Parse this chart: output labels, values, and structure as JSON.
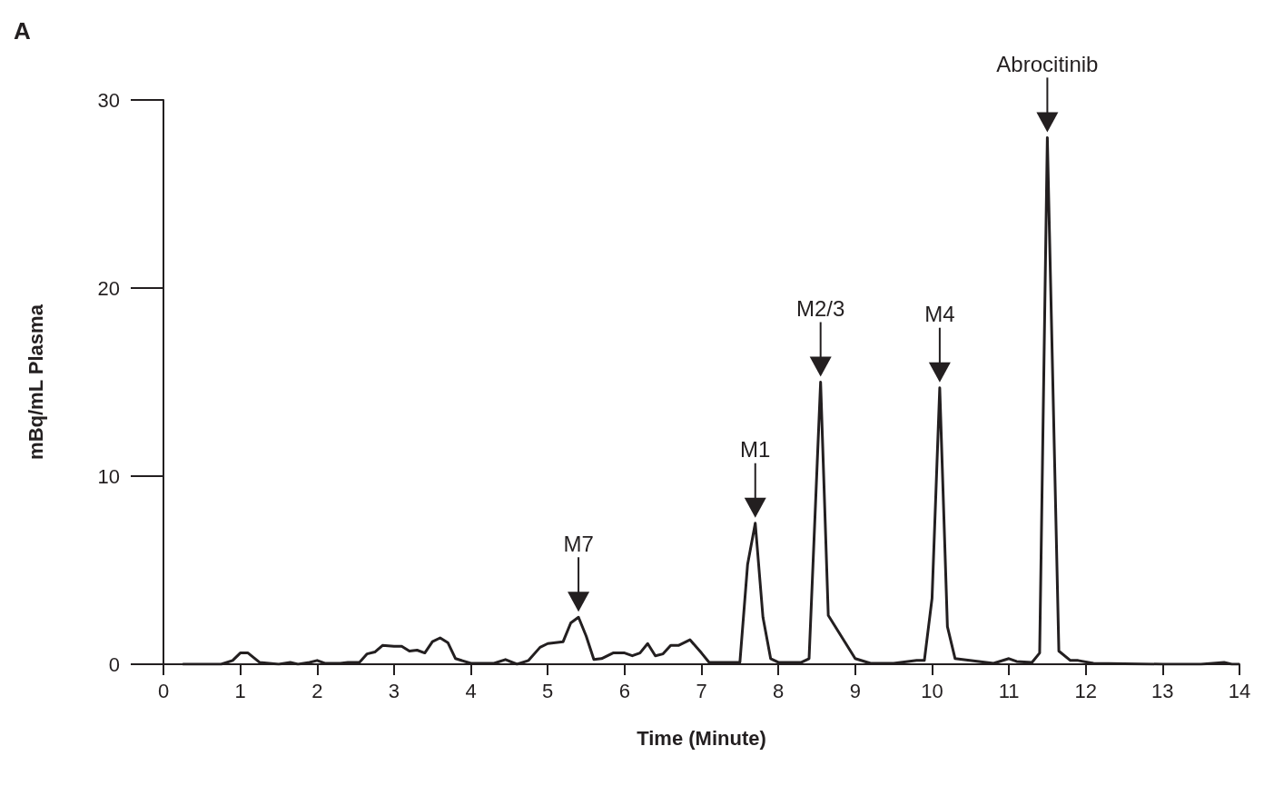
{
  "chart_data": {
    "type": "line",
    "title": "A",
    "xlabel": "Time (Minute)",
    "ylabel": "mBq/mL Plasma",
    "xlim": [
      0,
      14
    ],
    "xticks": [
      0,
      1,
      2,
      3,
      4,
      5,
      6,
      7,
      8,
      9,
      10,
      11,
      12,
      13,
      14
    ],
    "ylim": [
      0,
      30
    ],
    "yticks": [
      0,
      10,
      20,
      30
    ],
    "grid": false,
    "marker": "none",
    "line_style": "solid",
    "series": [
      {
        "color": "#231f20",
        "x": [
          0.25,
          0.75,
          0.9,
          1.0,
          1.1,
          1.25,
          1.5,
          1.65,
          1.75,
          1.9,
          2.0,
          2.1,
          2.3,
          2.4,
          2.55,
          2.65,
          2.75,
          2.85,
          3.0,
          3.1,
          3.2,
          3.3,
          3.4,
          3.5,
          3.6,
          3.7,
          3.8,
          4.0,
          4.3,
          4.45,
          4.6,
          4.75,
          4.9,
          5.0,
          5.2,
          5.3,
          5.4,
          5.5,
          5.6,
          5.7,
          5.85,
          6.0,
          6.1,
          6.2,
          6.3,
          6.4,
          6.5,
          6.6,
          6.7,
          6.85,
          7.0,
          7.1,
          7.3,
          7.5,
          7.6,
          7.7,
          7.8,
          7.9,
          8.0,
          8.3,
          8.4,
          8.55,
          8.65,
          9.0,
          9.2,
          9.5,
          9.8,
          9.9,
          10.0,
          10.1,
          10.2,
          10.3,
          10.8,
          11.0,
          11.1,
          11.3,
          11.4,
          11.5,
          11.65,
          11.8,
          11.9,
          12.1,
          13.0,
          13.5,
          13.8,
          13.9,
          14.0
        ],
        "values": [
          0,
          0,
          0.2,
          0.6,
          0.6,
          0.1,
          0,
          0.1,
          0,
          0.1,
          0.2,
          0.05,
          0.05,
          0.1,
          0.1,
          0.55,
          0.65,
          1.0,
          0.95,
          0.95,
          0.7,
          0.75,
          0.6,
          1.2,
          1.4,
          1.15,
          0.3,
          0.05,
          0.05,
          0.25,
          0,
          0.2,
          0.9,
          1.1,
          1.2,
          2.2,
          2.5,
          1.5,
          0.25,
          0.3,
          0.6,
          0.6,
          0.45,
          0.6,
          1.1,
          0.45,
          0.55,
          1.0,
          1.0,
          1.3,
          0.6,
          0.1,
          0.1,
          0.1,
          5.3,
          7.5,
          2.5,
          0.3,
          0.1,
          0.1,
          0.3,
          15.0,
          2.6,
          0.3,
          0.05,
          0.05,
          0.2,
          0.2,
          3.5,
          14.7,
          2.0,
          0.3,
          0.05,
          0.3,
          0.15,
          0.1,
          0.6,
          28.0,
          0.7,
          0.2,
          0.2,
          0.05,
          0,
          0,
          0.1,
          0,
          0
        ]
      }
    ],
    "annotations": [
      {
        "text": "M7",
        "x": 5.4,
        "y": 2.5
      },
      {
        "text": "M1",
        "x": 7.7,
        "y": 7.5
      },
      {
        "text": "M2/3",
        "x": 8.55,
        "y": 15.0
      },
      {
        "text": "M4",
        "x": 10.1,
        "y": 14.7
      },
      {
        "text": "Abrocitinib",
        "x": 11.5,
        "y": 28.0
      }
    ]
  }
}
